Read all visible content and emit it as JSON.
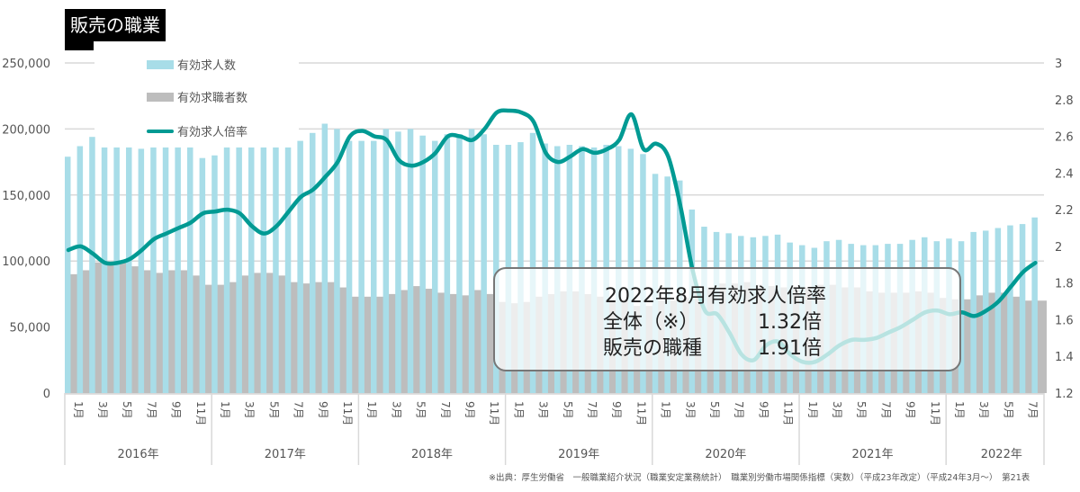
{
  "title": "販売の職業",
  "legend": [
    {
      "label": "有効求人数",
      "color": "#a8dde8"
    },
    {
      "label": "有効求職者数",
      "color": "#bdbdbd"
    },
    {
      "label": "有効求人倍率",
      "color": "#009a93"
    }
  ],
  "annotation": {
    "heading": "2022年8月有効求人倍率",
    "rows": [
      {
        "label": "全体（※）",
        "value": "1.32倍"
      },
      {
        "label": "販売の職種",
        "value": "1.91倍"
      }
    ]
  },
  "source": "※出典：厚生労働省　一般職業紹介状況（職業安定業務統計）　職業別労働市場関係指標（実数）（平成23年改定）（平成24年3月～）　第21表",
  "chart_data": {
    "type": "bar+line",
    "title": "販売の職業",
    "years": [
      "2016年",
      "2017年",
      "2018年",
      "2019年",
      "2020年",
      "2021年",
      "2022年"
    ],
    "month_tick_labels": [
      "1月",
      "3月",
      "5月",
      "7月",
      "9月",
      "11月"
    ],
    "period": "2016年1月〜2022年8月 (monthly)",
    "y_left": {
      "ticks": [
        "0",
        "50,000",
        "100,000",
        "150,000",
        "200,000",
        "250,000"
      ],
      "range": [
        0,
        250000
      ]
    },
    "y_right": {
      "ticks": [
        "1.2",
        "1.4",
        "1.6",
        "1.8",
        "2",
        "2.2",
        "2.4",
        "2.6",
        "2.8",
        "3"
      ],
      "range": [
        1.2,
        3.0
      ]
    },
    "grid": true,
    "legend_position": "top-left",
    "series": [
      {
        "name": "有効求人数",
        "type": "bar",
        "axis": "left",
        "values": [
          179000,
          187000,
          194000,
          186000,
          186000,
          186000,
          185000,
          186000,
          186000,
          186000,
          186000,
          178000,
          180000,
          186000,
          186000,
          186000,
          186000,
          186000,
          186000,
          191000,
          197000,
          204000,
          200000,
          191000,
          191000,
          191000,
          200000,
          198000,
          200000,
          195000,
          191000,
          196000,
          196000,
          200000,
          196000,
          188000,
          188000,
          190000,
          197000,
          189000,
          187000,
          188000,
          187000,
          186000,
          188000,
          187000,
          185000,
          181000,
          166000,
          164000,
          161000,
          139000,
          126000,
          122000,
          121000,
          119000,
          118000,
          119000,
          120000,
          114000,
          112000,
          110000,
          115000,
          116000,
          113000,
          112000,
          112000,
          113000,
          113000,
          116000,
          118000,
          115000,
          117000,
          115000,
          122000,
          123000,
          125000,
          127000,
          128000,
          133000
        ]
      },
      {
        "name": "有効求職者数",
        "type": "bar",
        "axis": "left",
        "values": [
          90000,
          93000,
          99000,
          99000,
          99000,
          96000,
          93000,
          91000,
          93000,
          93000,
          89000,
          82000,
          82000,
          84000,
          89000,
          91000,
          91000,
          89000,
          84000,
          83000,
          84000,
          84000,
          80000,
          73000,
          73000,
          73000,
          75000,
          78000,
          81000,
          79000,
          76000,
          75000,
          74000,
          78000,
          75000,
          69000,
          68000,
          69000,
          73000,
          75000,
          77000,
          77000,
          75000,
          73000,
          71000,
          70000,
          66000,
          66000,
          70000,
          70000,
          72000,
          76000,
          80000,
          83000,
          83000,
          84000,
          82000,
          81000,
          80000,
          80000,
          80000,
          82000,
          82000,
          80000,
          80000,
          77000,
          76000,
          76000,
          76000,
          77000,
          76000,
          72000,
          71000,
          71000,
          74000,
          76000,
          76000,
          73000,
          70000,
          70000
        ]
      },
      {
        "name": "有効求人倍率",
        "type": "line",
        "axis": "right",
        "values": [
          1.98,
          2.0,
          1.96,
          1.91,
          1.91,
          1.93,
          1.98,
          2.04,
          2.07,
          2.1,
          2.13,
          2.18,
          2.19,
          2.2,
          2.18,
          2.11,
          2.07,
          2.11,
          2.19,
          2.27,
          2.31,
          2.38,
          2.46,
          2.6,
          2.63,
          2.6,
          2.58,
          2.47,
          2.44,
          2.46,
          2.51,
          2.6,
          2.6,
          2.58,
          2.64,
          2.73,
          2.74,
          2.73,
          2.68,
          2.51,
          2.46,
          2.49,
          2.53,
          2.51,
          2.53,
          2.58,
          2.72,
          2.53,
          2.56,
          2.49,
          2.22,
          1.87,
          1.65,
          1.63,
          1.53,
          1.41,
          1.38,
          1.46,
          1.48,
          1.41,
          1.37,
          1.37,
          1.41,
          1.46,
          1.49,
          1.49,
          1.5,
          1.53,
          1.56,
          1.6,
          1.64,
          1.65,
          1.63,
          1.64,
          1.62,
          1.65,
          1.7,
          1.78,
          1.86,
          1.91
        ]
      }
    ]
  }
}
